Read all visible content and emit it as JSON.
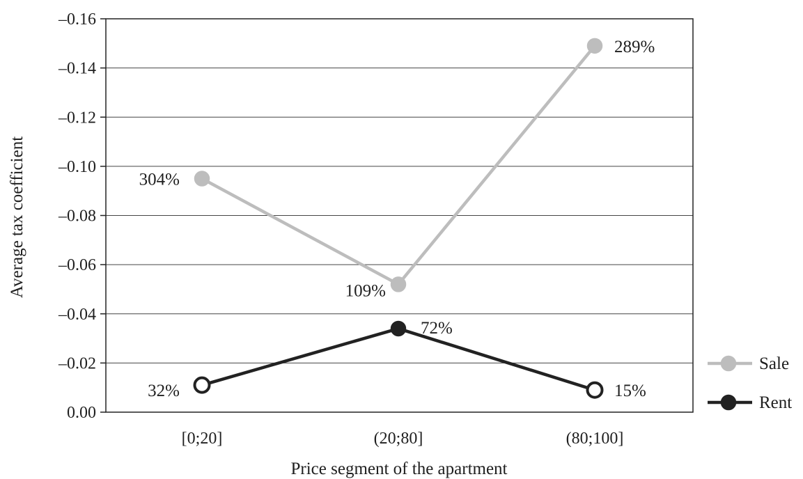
{
  "chart_data": {
    "type": "line",
    "xlabel": "Price segment of the apartment",
    "ylabel": "Average tax coefficient",
    "categories": [
      "[0;20]",
      "(20;80]",
      "(80;100]"
    ],
    "y_tick_labels": [
      "0.00",
      "–0.02",
      "–0.04",
      "–0.06",
      "–0.08",
      "–0.10",
      "–0.12",
      "–0.14",
      "–0.16"
    ],
    "y_tick_values": [
      0,
      -0.02,
      -0.04,
      -0.06,
      -0.08,
      -0.1,
      -0.12,
      -0.14,
      -0.16
    ],
    "ylim": [
      0,
      -0.16
    ],
    "y_axis_inverted": true,
    "grid": true,
    "legend_position": "right",
    "series": [
      {
        "name": "Sale",
        "color": "#bdbdbd",
        "values": [
          -0.095,
          -0.052,
          -0.149
        ],
        "labels": [
          "304%",
          "109%",
          "289%"
        ],
        "marker_fill": [
          "#bdbdbd",
          "#bdbdbd",
          "#bdbdbd"
        ]
      },
      {
        "name": "Rent",
        "color": "#222222",
        "values": [
          -0.011,
          -0.034,
          -0.009
        ],
        "labels": [
          "32%",
          "72%",
          "15%"
        ],
        "marker_fill": [
          "#ffffff",
          "#222222",
          "#ffffff"
        ]
      }
    ]
  }
}
